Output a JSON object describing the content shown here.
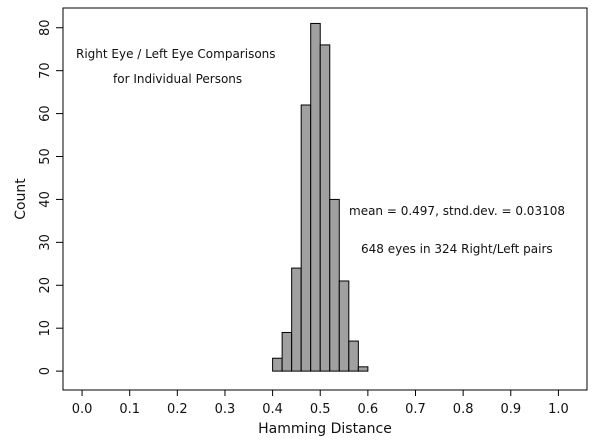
{
  "chart_data": {
    "type": "histogram",
    "x_label": "Hamming Distance",
    "y_label": "Count",
    "bins": [
      0.4,
      0.42,
      0.44,
      0.46,
      0.48,
      0.5,
      0.52,
      0.54,
      0.56,
      0.58,
      0.6
    ],
    "values": [
      3,
      9,
      24,
      62,
      81,
      76,
      40,
      21,
      7,
      1
    ],
    "color": "#a0a0a0",
    "xlim": [
      -0.04,
      1.06
    ],
    "ylim": [
      -4.4,
      84.6
    ],
    "xticks": [
      {
        "value": 0,
        "label": "0.0"
      },
      0.1,
      0.2,
      0.3,
      0.4,
      0.5,
      0.6,
      0.7,
      0.8,
      0.9,
      {
        "value": 1,
        "label": "1.0"
      }
    ],
    "yticks": [
      0,
      10,
      20,
      30,
      40,
      50,
      60,
      70,
      80
    ],
    "annotations": [
      "Right Eye / Left Eye Comparisons",
      "for Individual Persons",
      "mean = 0.497,  stnd.dev. = 0.03108",
      "648 eyes in 324 Right/Left pairs"
    ]
  }
}
